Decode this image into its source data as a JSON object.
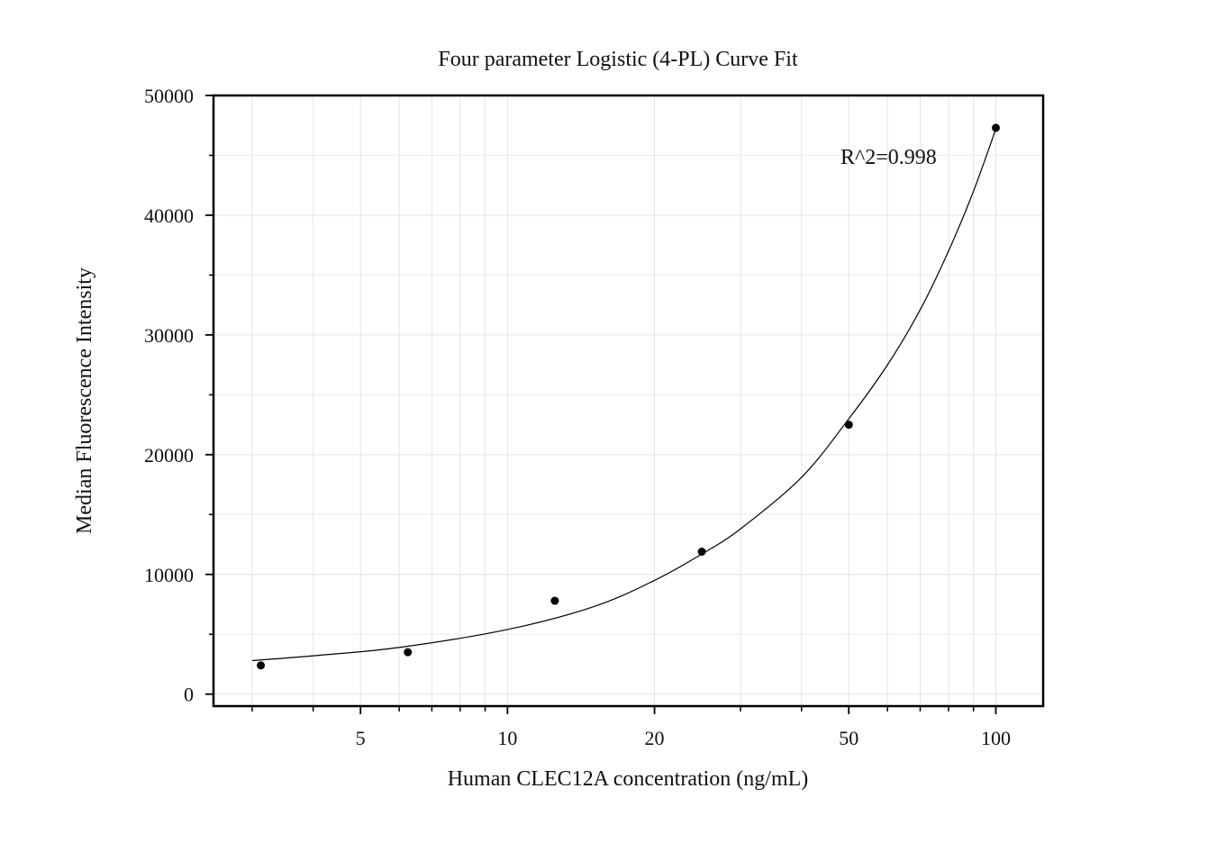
{
  "chart_data": {
    "type": "scatter",
    "title": "Four parameter Logistic (4-PL) Curve Fit",
    "xlabel": "Human CLEC12A concentration (ng/mL)",
    "ylabel": "Median Fluorescence Intensity",
    "x_scale": "log",
    "xlim": [
      2.5,
      125
    ],
    "ylim": [
      -1000,
      50000
    ],
    "x_ticks": [
      5,
      10,
      20,
      50,
      100
    ],
    "x_tick_labels": [
      "5",
      "10",
      "20",
      "50",
      "100"
    ],
    "y_ticks": [
      0,
      10000,
      20000,
      30000,
      40000,
      50000
    ],
    "y_tick_labels": [
      "0",
      "10000",
      "20000",
      "30000",
      "40000",
      "50000"
    ],
    "grid": true,
    "series": [
      {
        "x": [
          3.125,
          6.25,
          12.5,
          25,
          50,
          100
        ],
        "y": [
          2400,
          3500,
          7800,
          11900,
          22500,
          47300
        ],
        "marker": "circle",
        "color": "#000000"
      }
    ],
    "fit_curve": {
      "model": "4PL",
      "x": [
        3.0,
        4.0,
        6.0,
        10.0,
        15.0,
        20.0,
        25.0,
        30.0,
        40.0,
        50.0,
        60.0,
        70.0,
        80.0,
        90.0,
        100.0
      ],
      "y": [
        2800,
        3200,
        3900,
        5400,
        7300,
        9500,
        11700,
        13800,
        18100,
        23000,
        27500,
        32100,
        37000,
        42000,
        47200
      ],
      "color": "#000000"
    },
    "annotations": [
      "R^2=0.998"
    ]
  }
}
